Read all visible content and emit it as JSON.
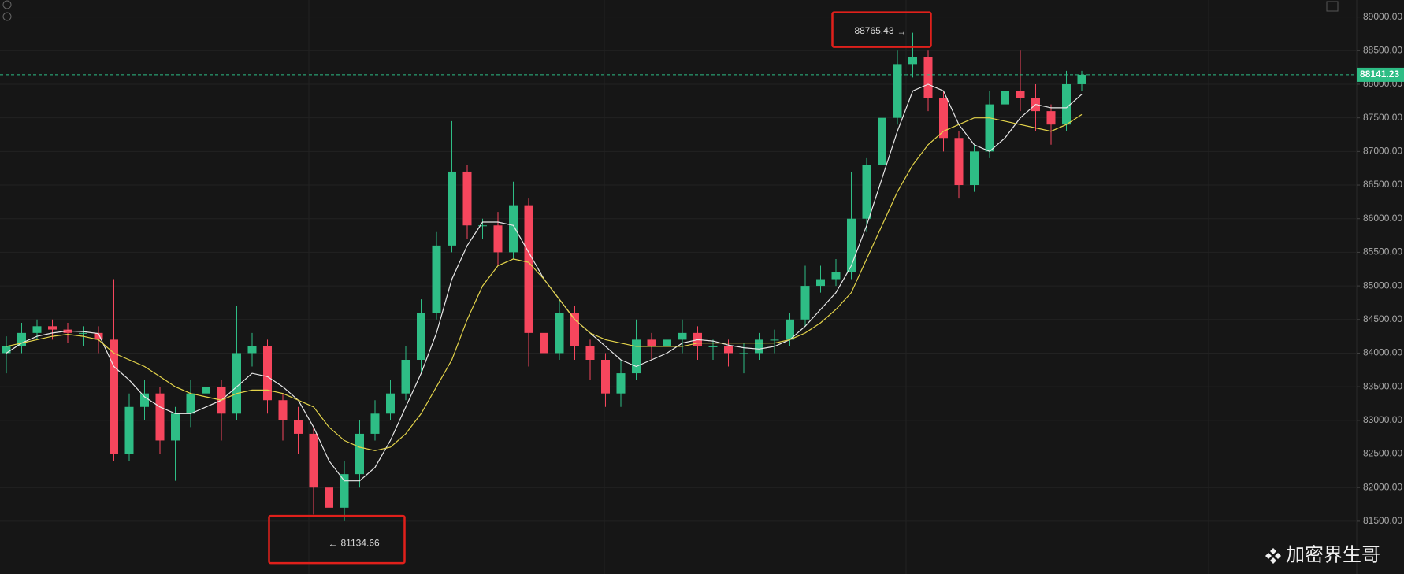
{
  "chart_data": {
    "type": "candlestick",
    "ylim": [
      80714,
      89253
    ],
    "yticks": [
      {
        "value": 81500,
        "label": "81500.00"
      },
      {
        "value": 82000,
        "label": "82000.00"
      },
      {
        "value": 82500,
        "label": "82500.00"
      },
      {
        "value": 83000,
        "label": "83000.00"
      },
      {
        "value": 83500,
        "label": "83500.00"
      },
      {
        "value": 84000,
        "label": "84000.00"
      },
      {
        "value": 84500,
        "label": "84500.00"
      },
      {
        "value": 85000,
        "label": "85000.00"
      },
      {
        "value": 85500,
        "label": "85500.00"
      },
      {
        "value": 86000,
        "label": "86000.00"
      },
      {
        "value": 86500,
        "label": "86500.00"
      },
      {
        "value": 87000,
        "label": "87000.00"
      },
      {
        "value": 87500,
        "label": "87500.00"
      },
      {
        "value": 88000,
        "label": "88000.00"
      },
      {
        "value": 88500,
        "label": "88500.00"
      },
      {
        "value": 89000,
        "label": "89000.00"
      }
    ],
    "grid": true,
    "up_color": "#2ebd85",
    "down_color": "#f6465d",
    "open": [
      84000,
      84100,
      84300,
      84400,
      84350,
      84300,
      84300,
      84200,
      82500,
      83200,
      83400,
      82700,
      83100,
      83400,
      83500,
      83100,
      84000,
      84100,
      83300,
      83000,
      82800,
      82000,
      81700,
      82200,
      82800,
      83100,
      83400,
      83900,
      84600,
      85600,
      86700,
      85900,
      85900,
      85500,
      86200,
      84300,
      84000,
      84600,
      84100,
      83900,
      83400,
      83700,
      84200,
      84100,
      84200,
      84300,
      84100,
      84100,
      84000,
      84000,
      84200,
      84200,
      84500,
      85000,
      85100,
      85200,
      86000,
      86800,
      87500,
      88300,
      88400,
      87800,
      87200,
      86500,
      87000,
      87700,
      87900,
      87800,
      87600,
      87400,
      88000
    ],
    "high": [
      84250,
      84450,
      84500,
      84500,
      84450,
      84400,
      84400,
      85100,
      83400,
      83600,
      83500,
      83200,
      83600,
      83700,
      83600,
      84700,
      84300,
      84200,
      83400,
      83200,
      82900,
      82100,
      82400,
      83000,
      83300,
      83600,
      84100,
      84800,
      85800,
      87450,
      86800,
      86000,
      86100,
      86550,
      86300,
      84400,
      84800,
      84700,
      84200,
      84000,
      83900,
      84500,
      84300,
      84350,
      84500,
      84400,
      84200,
      84200,
      84150,
      84300,
      84350,
      84600,
      85300,
      85300,
      85400,
      86700,
      86900,
      87700,
      88500,
      88765.43,
      88500,
      87900,
      87300,
      87100,
      87900,
      88400,
      88500,
      88000,
      87700,
      88200,
      88200
    ],
    "low": [
      83700,
      84000,
      84200,
      84200,
      84150,
      84100,
      84000,
      82400,
      82400,
      83000,
      82500,
      82100,
      82900,
      83200,
      82700,
      83000,
      83800,
      83100,
      82700,
      82500,
      81600,
      81134.66,
      81500,
      82000,
      82700,
      83000,
      83300,
      83700,
      84500,
      85500,
      85700,
      85700,
      85300,
      85400,
      83800,
      83700,
      83900,
      83900,
      83600,
      83200,
      83200,
      83600,
      83900,
      84000,
      84000,
      83900,
      83900,
      83800,
      83700,
      83900,
      84000,
      84100,
      84400,
      84900,
      85000,
      85100,
      85800,
      86700,
      87400,
      88100,
      87600,
      87000,
      86300,
      86400,
      86900,
      87500,
      87600,
      87300,
      87100,
      87300,
      87900
    ],
    "close": [
      84100,
      84300,
      84400,
      84350,
      84300,
      84300,
      84200,
      82500,
      83200,
      83400,
      82700,
      83100,
      83400,
      83500,
      83100,
      84000,
      84100,
      83300,
      83000,
      82800,
      82000,
      81700,
      82200,
      82800,
      83100,
      83400,
      83900,
      84600,
      85600,
      86700,
      85900,
      85900,
      85500,
      86200,
      84300,
      84000,
      84600,
      84100,
      83900,
      83400,
      83700,
      84200,
      84100,
      84200,
      84300,
      84100,
      84100,
      84000,
      84000,
      84200,
      84200,
      84500,
      85000,
      85100,
      85200,
      86000,
      86800,
      87500,
      88300,
      88400,
      87800,
      87200,
      86500,
      87000,
      87700,
      87900,
      87800,
      87600,
      87400,
      88000,
      88141.23
    ],
    "lines": [
      {
        "color": "#e8e8e8",
        "values": [
          84000,
          84150,
          84250,
          84300,
          84330,
          84320,
          84290,
          83800,
          83600,
          83350,
          83200,
          83100,
          83100,
          83200,
          83300,
          83500,
          83700,
          83650,
          83500,
          83300,
          82900,
          82400,
          82100,
          82100,
          82300,
          82700,
          83200,
          83700,
          84300,
          85100,
          85600,
          85950,
          85950,
          85900,
          85500,
          85100,
          84800,
          84500,
          84300,
          84100,
          83900,
          83800,
          83900,
          84000,
          84150,
          84200,
          84180,
          84120,
          84080,
          84060,
          84100,
          84200,
          84400,
          84650,
          84900,
          85300,
          85900,
          86600,
          87300,
          87900,
          88000,
          87900,
          87400,
          87100,
          87000,
          87200,
          87500,
          87700,
          87650,
          87650,
          87850
        ]
      },
      {
        "color": "#e3d34a",
        "values": [
          84100,
          84150,
          84200,
          84250,
          84280,
          84250,
          84200,
          84000,
          83900,
          83800,
          83650,
          83500,
          83400,
          83350,
          83300,
          83400,
          83450,
          83450,
          83400,
          83300,
          83200,
          82900,
          82700,
          82600,
          82550,
          82600,
          82800,
          83100,
          83500,
          83900,
          84500,
          85000,
          85300,
          85400,
          85350,
          85100,
          84800,
          84500,
          84300,
          84200,
          84150,
          84100,
          84100,
          84100,
          84100,
          84150,
          84150,
          84150,
          84150,
          84150,
          84150,
          84200,
          84300,
          84450,
          84650,
          84900,
          85400,
          85900,
          86400,
          86800,
          87100,
          87300,
          87400,
          87500,
          87500,
          87450,
          87400,
          87350,
          87300,
          87400,
          87550
        ]
      }
    ],
    "last_price": 88141.23,
    "last_price_color": "#2ebd85",
    "high_annotation": {
      "index": 59,
      "text": "88765.43"
    },
    "low_annotation": {
      "index": 21,
      "text": "81134.66"
    },
    "watermark": "加密界生哥"
  }
}
